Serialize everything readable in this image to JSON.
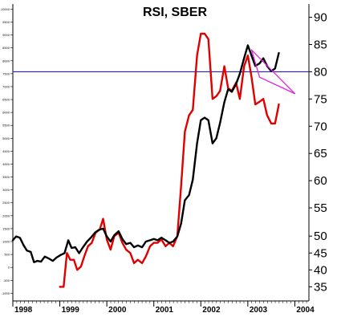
{
  "chart_data": {
    "type": "line",
    "title": "RSI, SBER",
    "x_range": [
      1998.0,
      2004.3
    ],
    "x_tick_labels": [
      "1998",
      "1999",
      "2000",
      "2001",
      "2002",
      "2003",
      "2004"
    ],
    "x_ticks": [
      1998,
      1999,
      2000,
      2001,
      2002,
      2003,
      2004
    ],
    "left_axis": {
      "range": [
        -1300,
        10200
      ],
      "ticks": [
        -1000,
        -500,
        0,
        500,
        1000,
        1500,
        2000,
        2500,
        3000,
        3500,
        4000,
        4500,
        5000,
        5500,
        6000,
        6500,
        7000,
        7500,
        8000,
        8500,
        9000,
        9500,
        10000
      ],
      "tick_labels": [
        "-1000",
        "-500",
        "0",
        "500",
        "1000",
        "1500",
        "2000",
        "2500",
        "3000",
        "3500",
        "4000",
        "4500",
        "5000",
        "5500",
        "6000",
        "6500",
        "7000",
        "7500",
        "8000",
        "8500",
        "9000",
        "9500",
        "10000"
      ]
    },
    "right_axis": {
      "upper": {
        "range": [
          52.5,
          92
        ],
        "ticks": [
          55,
          60,
          65,
          70,
          75,
          80,
          85,
          90
        ],
        "tick_labels": [
          "55",
          "60",
          "65",
          "70",
          "75",
          "80",
          "85",
          "90"
        ]
      },
      "lower": {
        "range": [
          32,
          51
        ],
        "ticks": [
          35,
          40,
          45,
          50
        ],
        "tick_labels": [
          "35",
          "40",
          "45",
          "50"
        ]
      }
    },
    "reference_line": {
      "axis": "right",
      "value": 80,
      "color": "#2020d0"
    },
    "series": [
      {
        "axis": "left",
        "color": "#000000",
        "points": [
          [
            1998.0,
            1050
          ],
          [
            1998.07,
            1200
          ],
          [
            1998.15,
            1150
          ],
          [
            1998.23,
            850
          ],
          [
            1998.3,
            650
          ],
          [
            1998.38,
            600
          ],
          [
            1998.45,
            200
          ],
          [
            1998.52,
            250
          ],
          [
            1998.6,
            220
          ],
          [
            1998.68,
            420
          ],
          [
            1998.76,
            350
          ],
          [
            1998.85,
            250
          ],
          [
            1998.93,
            380
          ],
          [
            1999.02,
            480
          ],
          [
            1999.1,
            550
          ],
          [
            1999.18,
            1050
          ],
          [
            1999.25,
            750
          ],
          [
            1999.33,
            780
          ],
          [
            1999.41,
            550
          ],
          [
            1999.5,
            800
          ],
          [
            1999.58,
            1000
          ],
          [
            1999.66,
            1150
          ],
          [
            1999.75,
            1350
          ],
          [
            1999.83,
            1450
          ],
          [
            1999.92,
            1500
          ],
          [
            2000.0,
            1200
          ],
          [
            2000.08,
            1000
          ],
          [
            2000.16,
            1250
          ],
          [
            2000.25,
            1400
          ],
          [
            2000.33,
            1100
          ],
          [
            2000.41,
            900
          ],
          [
            2000.5,
            950
          ],
          [
            2000.58,
            780
          ],
          [
            2000.66,
            850
          ],
          [
            2000.75,
            780
          ],
          [
            2000.83,
            1000
          ],
          [
            2000.92,
            1050
          ],
          [
            2001.0,
            1100
          ],
          [
            2001.08,
            1050
          ],
          [
            2001.16,
            1150
          ],
          [
            2001.25,
            1050
          ],
          [
            2001.33,
            950
          ],
          [
            2001.41,
            1000
          ],
          [
            2001.5,
            1200
          ],
          [
            2001.58,
            1700
          ],
          [
            2001.66,
            2600
          ],
          [
            2001.75,
            2800
          ],
          [
            2001.83,
            3400
          ],
          [
            2001.92,
            4800
          ],
          [
            2002.0,
            5700
          ],
          [
            2002.08,
            5800
          ],
          [
            2002.16,
            5700
          ],
          [
            2002.25,
            4800
          ],
          [
            2002.33,
            5000
          ],
          [
            2002.41,
            5600
          ],
          [
            2002.5,
            6400
          ],
          [
            2002.58,
            6900
          ],
          [
            2002.66,
            6800
          ],
          [
            2002.75,
            7100
          ],
          [
            2002.83,
            7500
          ],
          [
            2002.92,
            8100
          ],
          [
            2003.0,
            8600
          ],
          [
            2003.08,
            8200
          ],
          [
            2003.16,
            7800
          ],
          [
            2003.25,
            7900
          ],
          [
            2003.33,
            8100
          ],
          [
            2003.41,
            7800
          ],
          [
            2003.5,
            7600
          ],
          [
            2003.58,
            7700
          ],
          [
            2003.66,
            8300
          ]
        ]
      },
      {
        "axis": "right",
        "color": "#e00000",
        "points": [
          [
            1999.0,
            35
          ],
          [
            1999.08,
            35
          ],
          [
            1999.15,
            45
          ],
          [
            1999.22,
            43
          ],
          [
            1999.3,
            43
          ],
          [
            1999.37,
            40
          ],
          [
            1999.45,
            41
          ],
          [
            1999.52,
            44
          ],
          [
            1999.6,
            47
          ],
          [
            1999.68,
            48
          ],
          [
            1999.76,
            51
          ],
          [
            1999.85,
            52
          ],
          [
            1999.92,
            53
          ],
          [
            2000.0,
            49
          ],
          [
            2000.08,
            46
          ],
          [
            2000.16,
            50
          ],
          [
            2000.25,
            51
          ],
          [
            2000.33,
            48
          ],
          [
            2000.41,
            46
          ],
          [
            2000.5,
            45
          ],
          [
            2000.58,
            42
          ],
          [
            2000.66,
            43
          ],
          [
            2000.75,
            42
          ],
          [
            2000.83,
            44
          ],
          [
            2000.92,
            47
          ],
          [
            2001.0,
            48
          ],
          [
            2001.08,
            48
          ],
          [
            2001.16,
            49
          ],
          [
            2001.25,
            47
          ],
          [
            2001.33,
            48
          ],
          [
            2001.41,
            47
          ],
          [
            2001.5,
            50
          ],
          [
            2001.58,
            59
          ],
          [
            2001.66,
            69
          ],
          [
            2001.75,
            72
          ],
          [
            2001.83,
            73
          ],
          [
            2001.92,
            83
          ],
          [
            2002.0,
            87
          ],
          [
            2002.08,
            87
          ],
          [
            2002.16,
            86
          ],
          [
            2002.25,
            75
          ],
          [
            2002.33,
            75.5
          ],
          [
            2002.41,
            76.5
          ],
          [
            2002.5,
            81
          ],
          [
            2002.58,
            77
          ],
          [
            2002.66,
            76.5
          ],
          [
            2002.75,
            78
          ],
          [
            2002.83,
            75
          ],
          [
            2002.92,
            81
          ],
          [
            2003.0,
            83
          ],
          [
            2003.08,
            79
          ],
          [
            2003.16,
            74
          ],
          [
            2003.25,
            74.5
          ],
          [
            2003.33,
            75
          ],
          [
            2003.41,
            72
          ],
          [
            2003.5,
            70.5
          ],
          [
            2003.58,
            70.5
          ],
          [
            2003.66,
            74
          ]
        ]
      },
      {
        "axis": "right",
        "color": "#e020e0",
        "points": [
          [
            2003.08,
            84
          ],
          [
            2004.0,
            76
          ]
        ]
      },
      {
        "axis": "right",
        "color": "#e020e0",
        "points": [
          [
            2003.08,
            84
          ],
          [
            2003.25,
            79
          ],
          [
            2004.0,
            76
          ]
        ]
      }
    ]
  }
}
